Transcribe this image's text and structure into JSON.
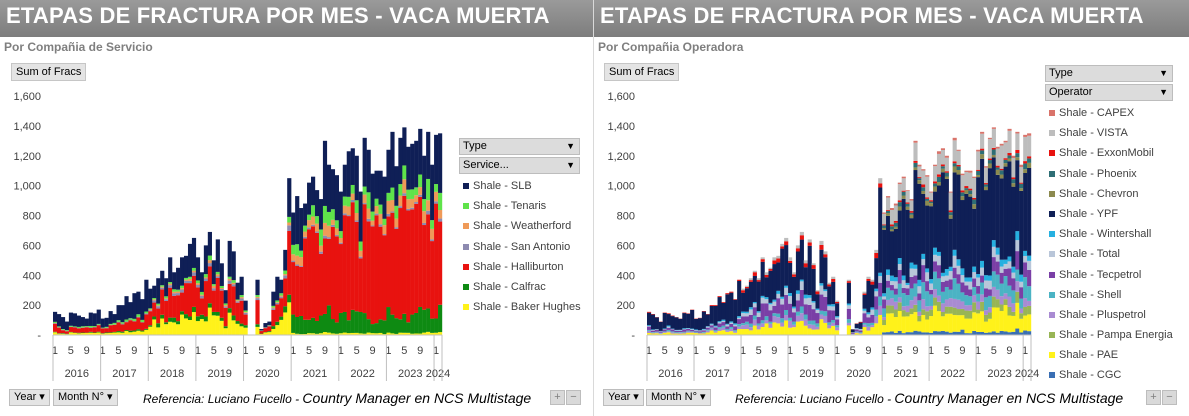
{
  "panels": [
    {
      "title": "ETAPAS DE FRACTURA POR MES -  VACA MUERTA",
      "subtitle": "Por Compañia de Servicio",
      "value_button": "Sum of Fracs",
      "legend": {
        "header": "Type",
        "field": "Service...",
        "items": [
          {
            "label": "Shale - SLB",
            "color": "#0f1f56"
          },
          {
            "label": "Shale - Tenaris",
            "color": "#5fe34a"
          },
          {
            "label": "Shale - Weatherford",
            "color": "#ef9a58"
          },
          {
            "label": "Shale - San Antonio",
            "color": "#8d8ab0"
          },
          {
            "label": "Shale - Halliburton",
            "color": "#e8120f"
          },
          {
            "label": "Shale - Calfrac",
            "color": "#0e8a12"
          },
          {
            "label": "Shale - Baker Hughes",
            "color": "#fff21a"
          }
        ]
      },
      "bottom": {
        "year": "Year",
        "month": "Month N°",
        "reference": "Referencia:  Luciano Fucello - ",
        "reference_big": "Country Manager en NCS Multistage"
      }
    },
    {
      "title": "ETAPAS DE FRACTURA POR MES -  VACA MUERTA",
      "subtitle": "Por Compañia Operadora",
      "value_button": "Sum of Fracs",
      "legend": {
        "header": "Type",
        "field": "Operator",
        "items": [
          {
            "label": "Shale - CAPEX",
            "color": "#d9736a"
          },
          {
            "label": "Shale - VISTA",
            "color": "#bdbdbd"
          },
          {
            "label": "Shale - ExxonMobil",
            "color": "#e8120f"
          },
          {
            "label": "Shale - Phoenix",
            "color": "#2e6e75"
          },
          {
            "label": "Shale - Chevron",
            "color": "#8c8a4f"
          },
          {
            "label": "Shale - YPF",
            "color": "#0f1f56"
          },
          {
            "label": "Shale - Wintershall",
            "color": "#26b0e0"
          },
          {
            "label": "Shale - Total",
            "color": "#b9c6d9"
          },
          {
            "label": "Shale - Tecpetrol",
            "color": "#7a3fa6"
          },
          {
            "label": "Shale - Shell",
            "color": "#4bb3c4"
          },
          {
            "label": "Shale - Pluspetrol",
            "color": "#a98bd2"
          },
          {
            "label": "Shale - Pampa Energia",
            "color": "#98b555"
          },
          {
            "label": "Shale - PAE",
            "color": "#fff21a"
          },
          {
            "label": "Shale - CGC",
            "color": "#3a6fb4"
          }
        ]
      },
      "bottom": {
        "year": "Year",
        "month": "Month N°",
        "reference": "Referencia:  Luciano Fucello - ",
        "reference_big": "Country Manager en NCS Multistage"
      }
    }
  ],
  "chart_data": [
    {
      "type": "bar",
      "stacked": true,
      "title": "ETAPAS DE FRACTURA POR MES -  VACA MUERTA",
      "subtitle": "Por Compañia de Servicio",
      "ylabel": "Sum of Fracs",
      "ylim": [
        0,
        1600
      ],
      "yticks": [
        0,
        200,
        400,
        600,
        800,
        1000,
        1200,
        1400,
        1600
      ],
      "ytick_labels": [
        "-",
        "200",
        "400",
        "600",
        "800",
        "1,000",
        "1,200",
        "1,400",
        "1,600"
      ],
      "grid": false,
      "legend_position": "right",
      "years": [
        "2016",
        "2017",
        "2018",
        "2019",
        "2020",
        "2021",
        "2022",
        "2023",
        "2024"
      ],
      "month_ticks": [
        "1",
        "5",
        "9"
      ],
      "month_count": 98,
      "totals": [
        155,
        140,
        120,
        90,
        150,
        145,
        130,
        120,
        110,
        150,
        145,
        170,
        110,
        115,
        160,
        140,
        200,
        200,
        260,
        220,
        280,
        290,
        240,
        370,
        310,
        330,
        380,
        430,
        380,
        520,
        420,
        450,
        520,
        530,
        610,
        650,
        520,
        420,
        600,
        690,
        500,
        640,
        480,
        300,
        630,
        560,
        350,
        390,
        230,
        0,
        0,
        370,
        40,
        80,
        90,
        290,
        390,
        370,
        570,
        1050,
        820,
        930,
        850,
        880,
        1020,
        1060,
        970,
        910,
        1300,
        1140,
        1110,
        1070,
        960,
        1140,
        1230,
        1250,
        1200,
        960,
        1320,
        1240,
        1080,
        1100,
        1100,
        1060,
        1240,
        1360,
        1130,
        1320,
        1390,
        1260,
        1280,
        1300,
        1380,
        1200,
        1360,
        1140,
        1340,
        1350
      ],
      "series_share_by_period": [
        {
          "period": "2016-2017",
          "shares": {
            "Shale - SLB": 0.55,
            "Shale - Tenaris": 0.05,
            "Shale - Weatherford": 0.0,
            "Shale - San Antonio": 0.02,
            "Shale - Halliburton": 0.25,
            "Shale - Calfrac": 0.03,
            "Shale - Baker Hughes": 0.1
          }
        },
        {
          "period": "2018-2020",
          "shares": {
            "Shale - SLB": 0.32,
            "Shale - Tenaris": 0.03,
            "Shale - Weatherford": 0.02,
            "Shale - San Antonio": 0.03,
            "Shale - Halliburton": 0.35,
            "Shale - Calfrac": 0.05,
            "Shale - Baker Hughes": 0.2
          }
        },
        {
          "period": "2021-2024",
          "shares": {
            "Shale - SLB": 0.25,
            "Shale - Tenaris": 0.06,
            "Shale - Weatherford": 0.05,
            "Shale - San Antonio": 0.01,
            "Shale - Halliburton": 0.52,
            "Shale - Calfrac": 0.1,
            "Shale - Baker Hughes": 0.01
          }
        }
      ]
    },
    {
      "type": "bar",
      "stacked": true,
      "title": "ETAPAS DE FRACTURA POR MES -  VACA MUERTA",
      "subtitle": "Por Compañia Operadora",
      "ylabel": "Sum of Fracs",
      "ylim": [
        0,
        1600
      ],
      "yticks": [
        0,
        200,
        400,
        600,
        800,
        1000,
        1200,
        1400,
        1600
      ],
      "ytick_labels": [
        "-",
        "200",
        "400",
        "600",
        "800",
        "1,000",
        "1,200",
        "1,400",
        "1,600"
      ],
      "grid": false,
      "legend_position": "right",
      "years": [
        "2016",
        "2017",
        "2018",
        "2019",
        "2020",
        "2021",
        "2022",
        "2023",
        "2024"
      ],
      "month_ticks": [
        "1",
        "5",
        "9"
      ],
      "month_count": 98,
      "totals": [
        155,
        140,
        120,
        90,
        150,
        145,
        130,
        120,
        110,
        150,
        145,
        170,
        110,
        115,
        160,
        140,
        200,
        200,
        260,
        220,
        280,
        290,
        240,
        370,
        310,
        330,
        380,
        430,
        380,
        520,
        420,
        450,
        520,
        530,
        610,
        650,
        520,
        420,
        600,
        690,
        500,
        640,
        480,
        300,
        630,
        560,
        350,
        390,
        230,
        0,
        0,
        370,
        40,
        80,
        90,
        290,
        390,
        370,
        570,
        1050,
        820,
        930,
        850,
        880,
        1020,
        1060,
        970,
        910,
        1300,
        1140,
        1110,
        1070,
        960,
        1140,
        1230,
        1250,
        1200,
        960,
        1320,
        1240,
        1080,
        1100,
        1100,
        1060,
        1240,
        1360,
        1130,
        1320,
        1390,
        1260,
        1280,
        1300,
        1380,
        1200,
        1360,
        1140,
        1340,
        1350
      ],
      "series_share_by_period": [
        {
          "period": "2016-2017",
          "shares": {
            "Shale - YPF": 0.65,
            "Shale - PAE": 0.1,
            "Shale - Tecpetrol": 0.08,
            "Shale - Pluspetrol": 0.05,
            "Shale - Shell": 0.04,
            "Shale - Total": 0.03,
            "Shale - ExxonMobil": 0.02,
            "Shale - Wintershall": 0.03
          }
        },
        {
          "period": "2018-2020",
          "shares": {
            "Shale - YPF": 0.45,
            "Shale - PAE": 0.12,
            "Shale - Tecpetrol": 0.15,
            "Shale - Pluspetrol": 0.06,
            "Shale - Shell": 0.05,
            "Shale - Total": 0.07,
            "Shale - ExxonMobil": 0.04,
            "Shale - Wintershall": 0.03,
            "Shale - VISTA": 0.03
          }
        },
        {
          "period": "2021-2024",
          "shares": {
            "Shale - YPF": 0.45,
            "Shale - PAE": 0.1,
            "Shale - Tecpetrol": 0.06,
            "Shale - Pluspetrol": 0.04,
            "Shale - Shell": 0.07,
            "Shale - Total": 0.04,
            "Shale - ExxonMobil": 0.01,
            "Shale - Wintershall": 0.03,
            "Shale - VISTA": 0.09,
            "Shale - Pampa Energia": 0.04,
            "Shale - Chevron": 0.02,
            "Shale - Phoenix": 0.02,
            "Shale - CAPEX": 0.01,
            "Shale - CGC": 0.02
          }
        }
      ]
    }
  ]
}
